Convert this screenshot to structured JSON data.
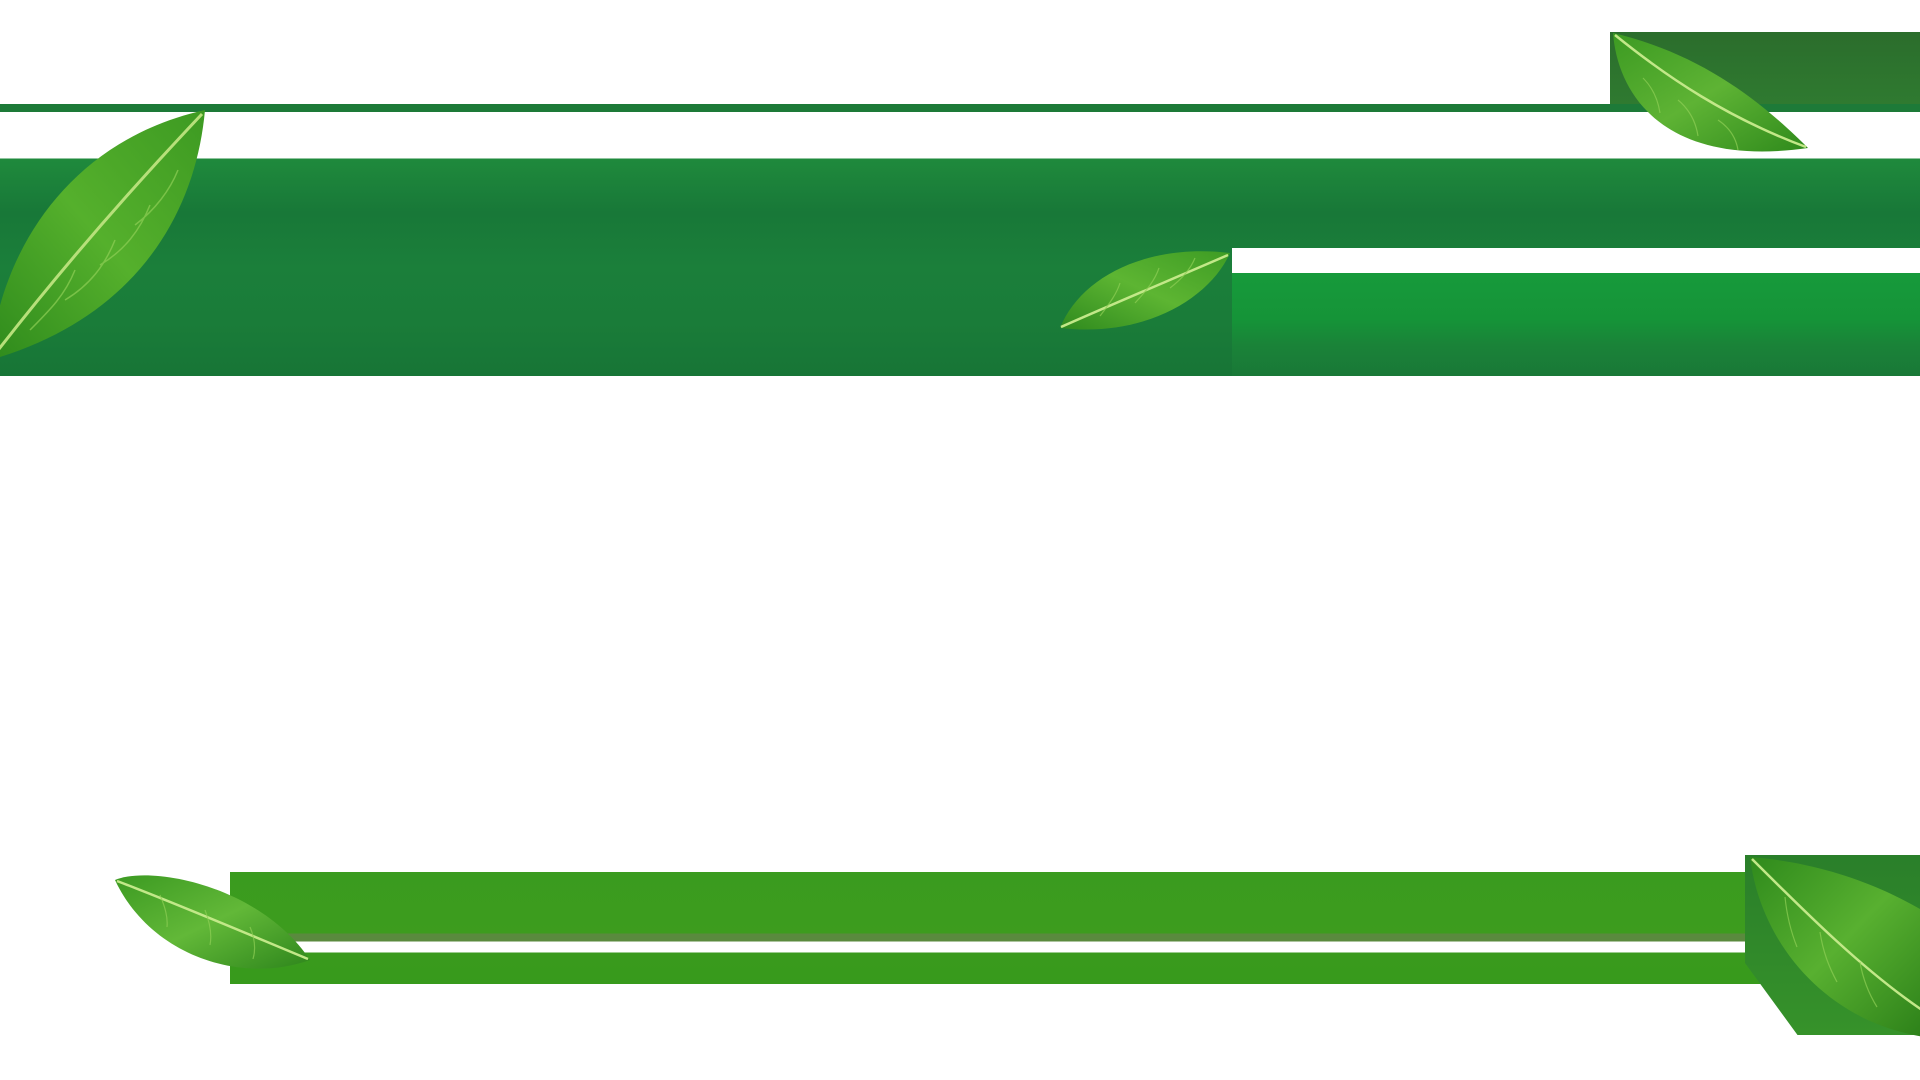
{
  "scene": {
    "background_color": "#ffffff",
    "band_color_top": "#1b7f3a",
    "band_color_top_right": "#159438",
    "band_color_bottom": "#3d9c1e",
    "leaf_color_light": "#7cc63a",
    "leaf_color_mid": "#3f9e24",
    "leaf_color_dark": "#1f6e1a",
    "leaves": [
      {
        "icon": "leaf-icon"
      },
      {
        "icon": "leaf-icon"
      },
      {
        "icon": "leaf-icon"
      },
      {
        "icon": "leaf-icon"
      },
      {
        "icon": "leaf-icon"
      }
    ]
  }
}
